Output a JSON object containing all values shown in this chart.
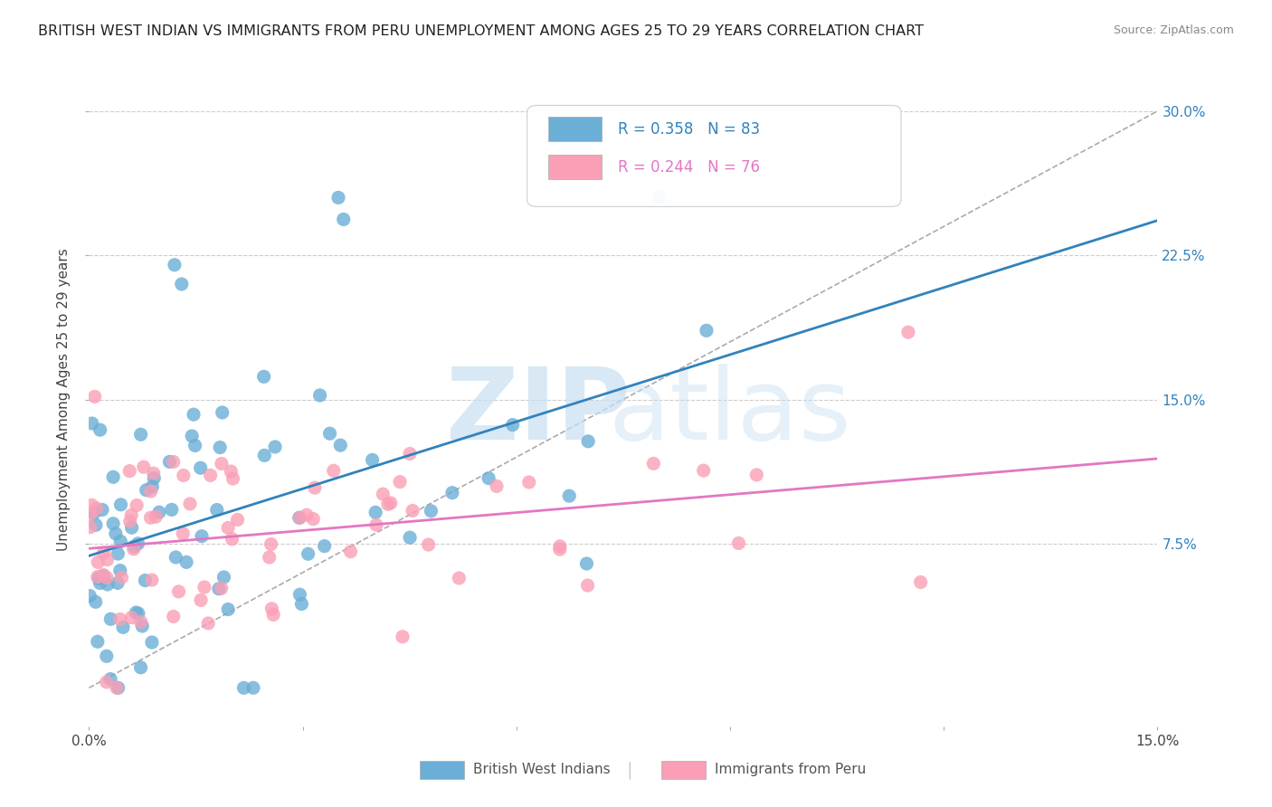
{
  "title": "BRITISH WEST INDIAN VS IMMIGRANTS FROM PERU UNEMPLOYMENT AMONG AGES 25 TO 29 YEARS CORRELATION CHART",
  "source": "Source: ZipAtlas.com",
  "ylabel": "Unemployment Among Ages 25 to 29 years",
  "y_ticks": [
    "7.5%",
    "15.0%",
    "22.5%",
    "30.0%"
  ],
  "y_tick_vals": [
    0.075,
    0.15,
    0.225,
    0.3
  ],
  "legend_label1": "R = 0.358   N = 83",
  "legend_label2": "R = 0.244   N = 76",
  "R1": 0.358,
  "N1": 83,
  "R2": 0.244,
  "N2": 76,
  "color_blue": "#6baed6",
  "color_pink": "#fa9fb5",
  "color_blue_line": "#3182bd",
  "color_pink_line": "#e377c2",
  "background": "#ffffff",
  "bottom_label1": "British West Indians",
  "bottom_label2": "Immigrants from Peru",
  "xlim": [
    0.0,
    0.15
  ],
  "ylim": [
    -0.02,
    0.32
  ],
  "seed1": 42,
  "seed2": 99
}
